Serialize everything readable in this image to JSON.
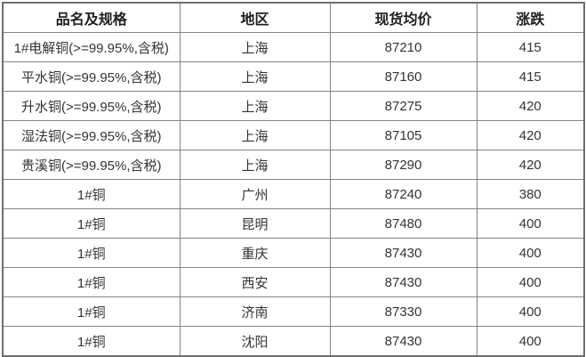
{
  "chart_data": {
    "type": "table",
    "columns": [
      "品名及规格",
      "地区",
      "现货均价",
      "涨跌"
    ],
    "rows": [
      {
        "spec": "1#电解铜(>=99.95%,含税)",
        "region": "上海",
        "price": "87210",
        "change": "415"
      },
      {
        "spec": "平水铜(>=99.95%,含税)",
        "region": "上海",
        "price": "87160",
        "change": "415"
      },
      {
        "spec": "升水铜(>=99.95%,含税)",
        "region": "上海",
        "price": "87275",
        "change": "420"
      },
      {
        "spec": "湿法铜(>=99.95%,含税)",
        "region": "上海",
        "price": "87105",
        "change": "420"
      },
      {
        "spec": "贵溪铜(>=99.95%,含税)",
        "region": "上海",
        "price": "87290",
        "change": "420"
      },
      {
        "spec": "1#铜",
        "region": "广州",
        "price": "87240",
        "change": "380"
      },
      {
        "spec": "1#铜",
        "region": "昆明",
        "price": "87480",
        "change": "400"
      },
      {
        "spec": "1#铜",
        "region": "重庆",
        "price": "87430",
        "change": "400"
      },
      {
        "spec": "1#铜",
        "region": "西安",
        "price": "87430",
        "change": "400"
      },
      {
        "spec": "1#铜",
        "region": "济南",
        "price": "87330",
        "change": "400"
      },
      {
        "spec": "1#铜",
        "region": "沈阳",
        "price": "87430",
        "change": "400"
      }
    ]
  },
  "colors": {
    "change_text": "#ff0000",
    "body_text": "#333333",
    "header_text": "#1f1f1f",
    "border": "#848484"
  }
}
